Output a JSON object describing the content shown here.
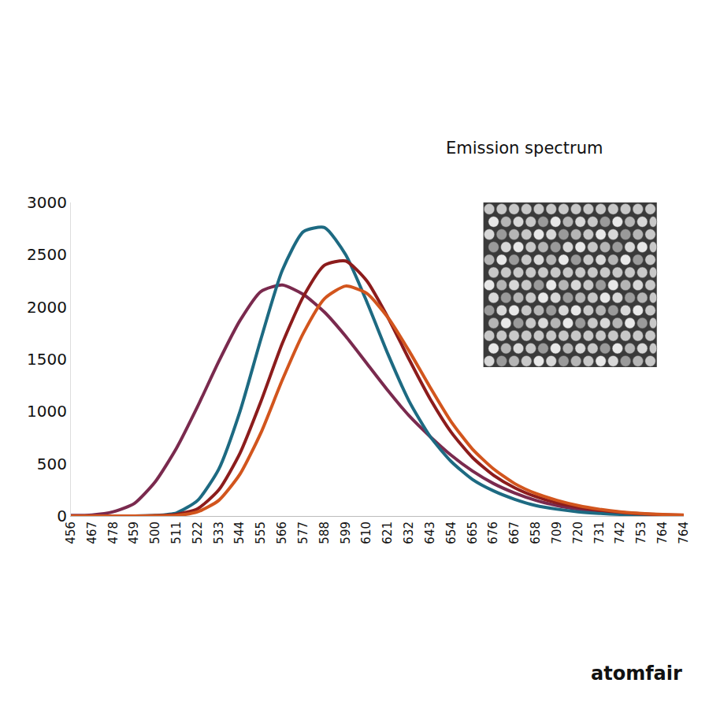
{
  "chart_data": {
    "type": "line",
    "title": "Emission spectrum",
    "annotations": [
      "atomfair"
    ],
    "categories": [
      "456",
      "467",
      "478",
      "459",
      "500",
      "511",
      "522",
      "533",
      "544",
      "555",
      "566",
      "577",
      "588",
      "599",
      "610",
      "621",
      "632",
      "643",
      "654",
      "665",
      "676",
      "667",
      "658",
      "709",
      "720",
      "731",
      "742",
      "753",
      "764",
      "764"
    ],
    "series": [
      {
        "color": "#7a2a4e",
        "values": [
          5,
          10,
          40,
          120,
          330,
          650,
          1050,
          1480,
          1870,
          2150,
          2210,
          2120,
          1950,
          1720,
          1460,
          1200,
          960,
          760,
          580,
          430,
          310,
          220,
          150,
          100,
          65,
          40,
          25,
          15,
          10,
          5
        ]
      },
      {
        "color": "#1d6a82",
        "values": [
          0,
          0,
          0,
          0,
          5,
          30,
          150,
          450,
          1000,
          1700,
          2350,
          2720,
          2760,
          2500,
          2050,
          1550,
          1100,
          760,
          520,
          350,
          240,
          160,
          100,
          65,
          40,
          25,
          15,
          8,
          5,
          3
        ]
      },
      {
        "color": "#8c1c1c",
        "values": [
          0,
          0,
          0,
          0,
          3,
          15,
          70,
          250,
          600,
          1100,
          1650,
          2100,
          2400,
          2440,
          2250,
          1900,
          1500,
          1120,
          800,
          560,
          390,
          270,
          185,
          125,
          85,
          55,
          35,
          20,
          12,
          8
        ]
      },
      {
        "color": "#d2551d",
        "values": [
          0,
          0,
          0,
          0,
          1,
          5,
          40,
          150,
          400,
          800,
          1300,
          1750,
          2080,
          2200,
          2130,
          1900,
          1580,
          1230,
          900,
          640,
          450,
          310,
          215,
          150,
          100,
          65,
          40,
          25,
          15,
          10
        ]
      }
    ],
    "ylim": [
      0,
      3000
    ],
    "yticks": [
      0,
      500,
      1000,
      1500,
      2000,
      2500,
      3000
    ],
    "grid": false
  }
}
